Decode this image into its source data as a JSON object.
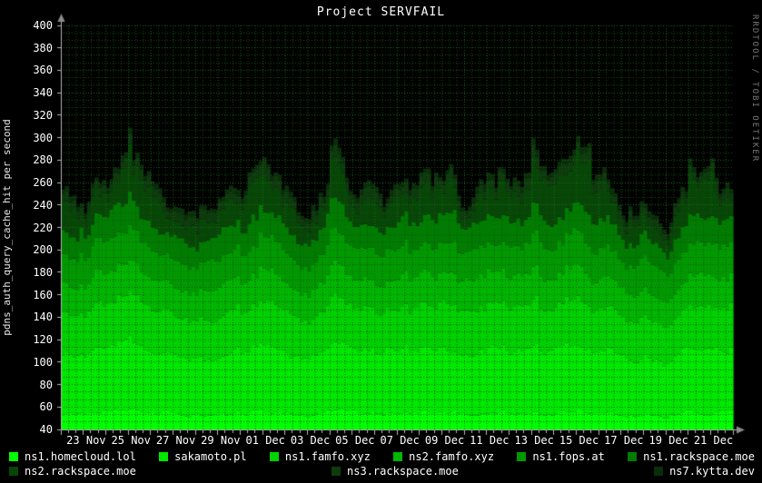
{
  "title": "Project SERVFAIL",
  "y_axis_label": "pdns_auth_query_cache_hit per second",
  "watermark": "RRDTOOL / TOBI OETIKER",
  "colors": {
    "background": "#000000",
    "text": "#ffffff",
    "grid_minor": "#155015",
    "grid_major": "#1e6e1e",
    "axis": "#b4b4b4",
    "arrow": "#8c8c8c"
  },
  "chart_data": {
    "type": "area",
    "stacked": true,
    "title": "Project SERVFAIL",
    "ylabel": "pdns_auth_query_cache_hit per second",
    "xlabel": "",
    "ylim": [
      40,
      400
    ],
    "y_tick_step": 20,
    "y_tick_labels": [
      "400",
      "380",
      "360",
      "340",
      "320",
      "300",
      "280",
      "260",
      "240",
      "220",
      "200",
      "180",
      "160",
      "140",
      "120",
      "100",
      "80",
      "60",
      "40"
    ],
    "x_tick_labels": [
      "23 Nov",
      "25 Nov",
      "27 Nov",
      "29 Nov",
      "01 Dec",
      "03 Dec",
      "05 Dec",
      "07 Dec",
      "09 Dec",
      "11 Dec",
      "13 Dec",
      "15 Dec",
      "17 Dec",
      "19 Dec",
      "21 Dec"
    ],
    "x_range_days": 30,
    "x_first_tick_day_offset": 1.13,
    "x_tick_interval_days": 2,
    "grid": true,
    "legend_position": "bottom",
    "legend_rows": [
      [
        0,
        1,
        2,
        3,
        4,
        5
      ],
      [
        6,
        7,
        8
      ]
    ],
    "series": [
      {
        "name": "ns1.homecloud.lol",
        "color": "#00ff00",
        "noise": 0.05,
        "daily": [
          54,
          55,
          56,
          57,
          55,
          54,
          53,
          54,
          55,
          56,
          55,
          53,
          56,
          55,
          54,
          55,
          55,
          56,
          55,
          56,
          55,
          56,
          54,
          57,
          56,
          53,
          54,
          52,
          56,
          55,
          55
        ]
      },
      {
        "name": "sakamoto.pl",
        "color": "#00e900",
        "noise": 0.08,
        "daily": [
          55,
          54,
          58,
          62,
          54,
          52,
          50,
          53,
          54,
          58,
          54,
          49,
          59,
          55,
          53,
          55,
          56,
          57,
          55,
          57,
          55,
          58,
          54,
          60,
          57,
          50,
          53,
          48,
          57,
          56,
          55
        ]
      },
      {
        "name": "ns1.famfo.xyz",
        "color": "#00d200",
        "noise": 0.1,
        "daily": [
          37,
          37,
          39,
          43,
          37,
          36,
          35,
          36,
          37,
          40,
          37,
          34,
          41,
          38,
          36,
          38,
          38,
          39,
          38,
          39,
          38,
          40,
          37,
          42,
          39,
          35,
          36,
          33,
          39,
          39,
          38
        ]
      },
      {
        "name": "ns2.famfo.xyz",
        "color": "#00b600",
        "noise": 0.12,
        "daily": [
          26,
          26,
          28,
          30,
          26,
          25,
          25,
          26,
          26,
          29,
          26,
          24,
          29,
          27,
          26,
          27,
          27,
          28,
          27,
          28,
          27,
          28,
          26,
          30,
          28,
          25,
          26,
          23,
          28,
          28,
          27
        ]
      },
      {
        "name": "ns1.fops.at",
        "color": "#009a00",
        "noise": 0.16,
        "daily": [
          26,
          26,
          28,
          31,
          26,
          25,
          25,
          26,
          26,
          29,
          26,
          24,
          30,
          27,
          26,
          27,
          27,
          28,
          27,
          28,
          27,
          29,
          26,
          30,
          28,
          25,
          26,
          23,
          28,
          28,
          27
        ]
      },
      {
        "name": "ns1.rackspace.moe",
        "color": "#007d00",
        "noise": 0.2,
        "daily": [
          22,
          22,
          24,
          27,
          22,
          22,
          21,
          22,
          22,
          25,
          22,
          20,
          25,
          23,
          22,
          23,
          23,
          24,
          23,
          24,
          23,
          25,
          22,
          26,
          24,
          21,
          22,
          20,
          24,
          24,
          23
        ]
      },
      {
        "name": "ns2.rackspace.moe",
        "color": "#074607",
        "noise": 0.55,
        "daily": [
          23,
          18,
          20,
          38,
          18,
          14,
          14,
          16,
          18,
          31,
          18,
          9,
          33,
          18,
          16,
          18,
          22,
          26,
          18,
          31,
          23,
          32,
          24,
          33,
          31,
          14,
          21,
          14,
          31,
          28,
          23
        ]
      },
      {
        "name": "ns3.rackspace.moe",
        "color": "#0e3a0e",
        "noise": 0.35,
        "daily": [
          8,
          8,
          8,
          9,
          8,
          8,
          8,
          8,
          8,
          9,
          8,
          7,
          9,
          8,
          8,
          8,
          8,
          8,
          8,
          9,
          8,
          9,
          8,
          9,
          9,
          7,
          8,
          7,
          9,
          8,
          8
        ]
      },
      {
        "name": "ns7.kytta.dev",
        "color": "#0a2e0a",
        "noise": 0.35,
        "daily": [
          4,
          4,
          4,
          5,
          4,
          4,
          4,
          4,
          4,
          5,
          4,
          4,
          5,
          4,
          4,
          4,
          4,
          4,
          4,
          5,
          4,
          5,
          4,
          5,
          5,
          4,
          4,
          4,
          5,
          4,
          4
        ]
      }
    ]
  }
}
